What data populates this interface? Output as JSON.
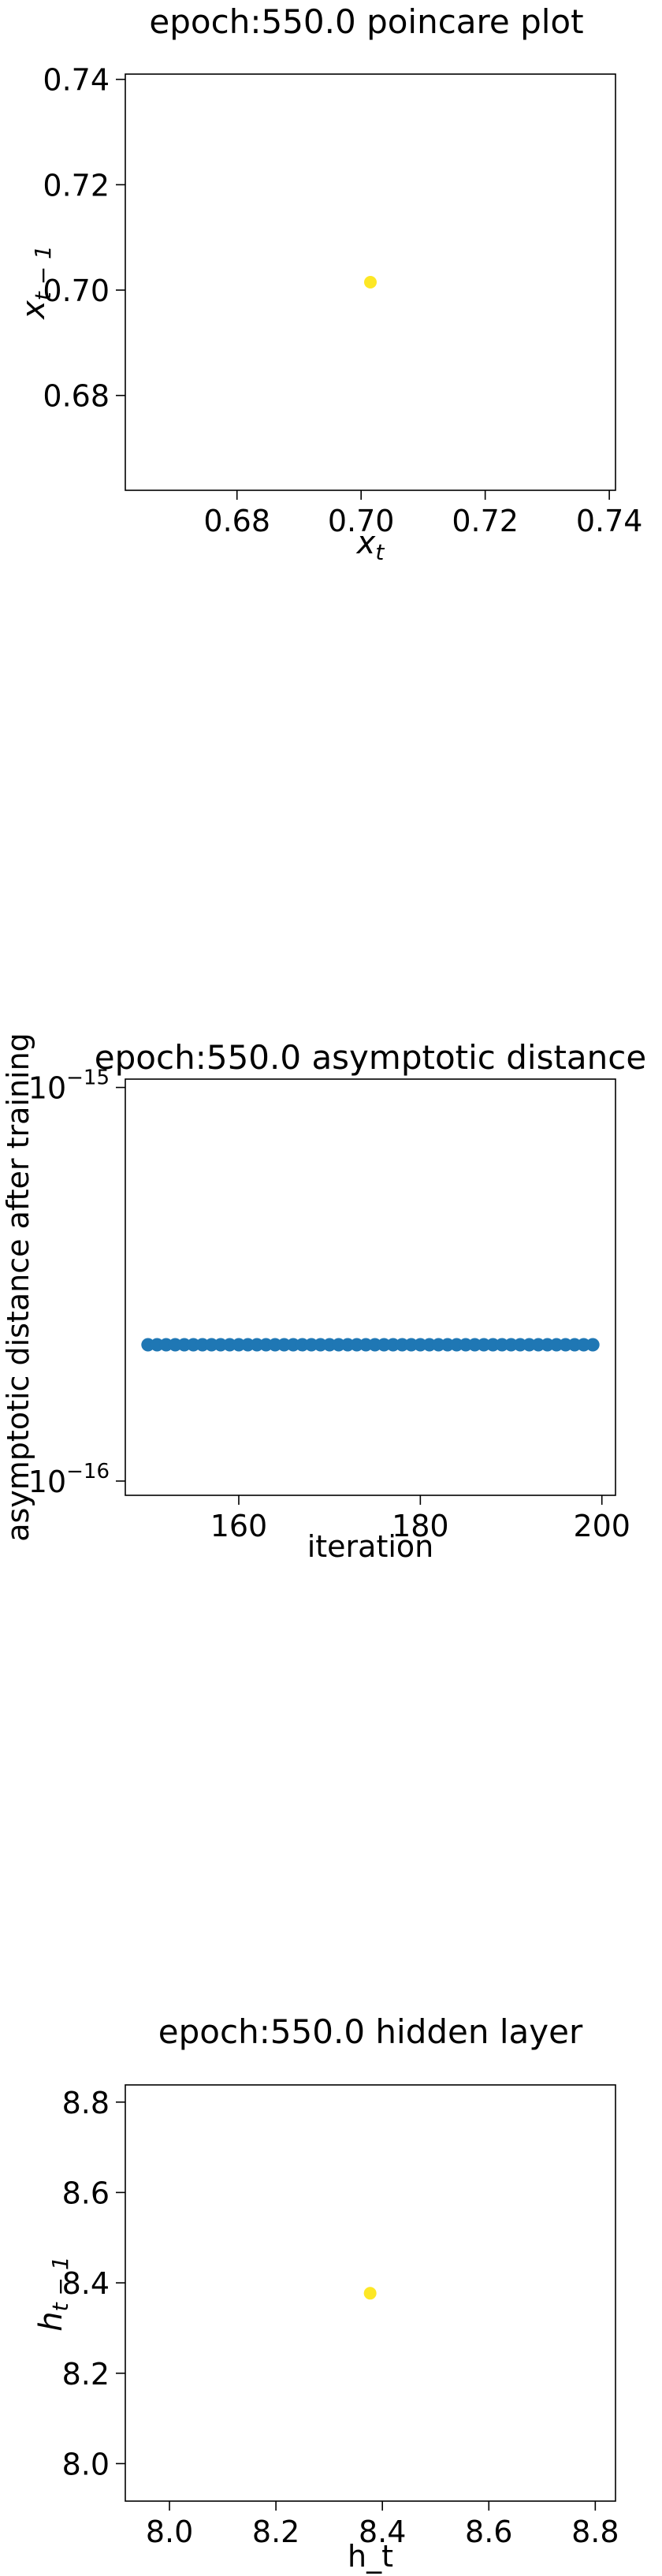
{
  "chart_data": [
    {
      "type": "scatter",
      "title": "epoch:550.0 poincare plot",
      "xlabel": "x_t",
      "ylabel": "x_{t-1}",
      "xlim": [
        0.662,
        0.741
      ],
      "ylim": [
        0.662,
        0.741
      ],
      "xticks": [
        0.68,
        0.7,
        0.72,
        0.74
      ],
      "xtick_labels": [
        "0.68",
        "0.70",
        "0.72",
        "0.74"
      ],
      "yticks": [
        0.68,
        0.7,
        0.72,
        0.74
      ],
      "ytick_labels": [
        "0.68",
        "0.70",
        "0.72",
        "0.74"
      ],
      "points": [
        {
          "x": 0.7015,
          "y": 0.7015
        }
      ],
      "color": "#fde725",
      "grid": false
    },
    {
      "type": "scatter",
      "title": "epoch:550.0 asymptotic distance",
      "xlabel": "iteration",
      "ylabel": "asymptotic distance after training",
      "yscale": "log",
      "xlim": [
        147.5,
        201.5
      ],
      "ylim": [
        9.2e-17,
        1.05e-15
      ],
      "xticks": [
        160,
        180,
        200
      ],
      "xtick_labels": [
        "160",
        "180",
        "200"
      ],
      "yticks": [
        1e-16,
        1e-15
      ],
      "ytick_labels": [
        {
          "base": "10",
          "exp": "−16"
        },
        {
          "base": "10",
          "exp": "−15"
        }
      ],
      "x": [
        150,
        151,
        152,
        153,
        154,
        155,
        156,
        157,
        158,
        159,
        160,
        161,
        162,
        163,
        164,
        165,
        166,
        167,
        168,
        169,
        170,
        171,
        172,
        173,
        174,
        175,
        176,
        177,
        178,
        179,
        180,
        181,
        182,
        183,
        184,
        185,
        186,
        187,
        188,
        189,
        190,
        191,
        192,
        193,
        194,
        195,
        196,
        197,
        198,
        199
      ],
      "y": [
        2.22e-16,
        2.22e-16,
        2.22e-16,
        2.22e-16,
        2.22e-16,
        2.22e-16,
        2.22e-16,
        2.22e-16,
        2.22e-16,
        2.22e-16,
        2.22e-16,
        2.22e-16,
        2.22e-16,
        2.22e-16,
        2.22e-16,
        2.22e-16,
        2.22e-16,
        2.22e-16,
        2.22e-16,
        2.22e-16,
        2.22e-16,
        2.22e-16,
        2.22e-16,
        2.22e-16,
        2.22e-16,
        2.22e-16,
        2.22e-16,
        2.22e-16,
        2.22e-16,
        2.22e-16,
        2.22e-16,
        2.22e-16,
        2.22e-16,
        2.22e-16,
        2.22e-16,
        2.22e-16,
        2.22e-16,
        2.22e-16,
        2.22e-16,
        2.22e-16,
        2.22e-16,
        2.22e-16,
        2.22e-16,
        2.22e-16,
        2.22e-16,
        2.22e-16,
        2.22e-16,
        2.22e-16,
        2.22e-16,
        2.22e-16
      ],
      "color": "#1f77b4",
      "grid": false
    },
    {
      "type": "scatter",
      "title": "epoch:550.0 hidden layer",
      "xlabel": "h_t",
      "ylabel": "h_{t-1}",
      "xlim": [
        7.917,
        8.838
      ],
      "ylim": [
        7.917,
        8.838
      ],
      "xticks": [
        8.0,
        8.2,
        8.4,
        8.6,
        8.8
      ],
      "xtick_labels": [
        "8.0",
        "8.2",
        "8.4",
        "8.6",
        "8.8"
      ],
      "yticks": [
        8.0,
        8.2,
        8.4,
        8.6,
        8.8
      ],
      "ytick_labels": [
        "8.0",
        "8.2",
        "8.4",
        "8.6",
        "8.8"
      ],
      "points": [
        {
          "x": 8.377,
          "y": 8.377
        }
      ],
      "color": "#fde725",
      "grid": false
    }
  ]
}
